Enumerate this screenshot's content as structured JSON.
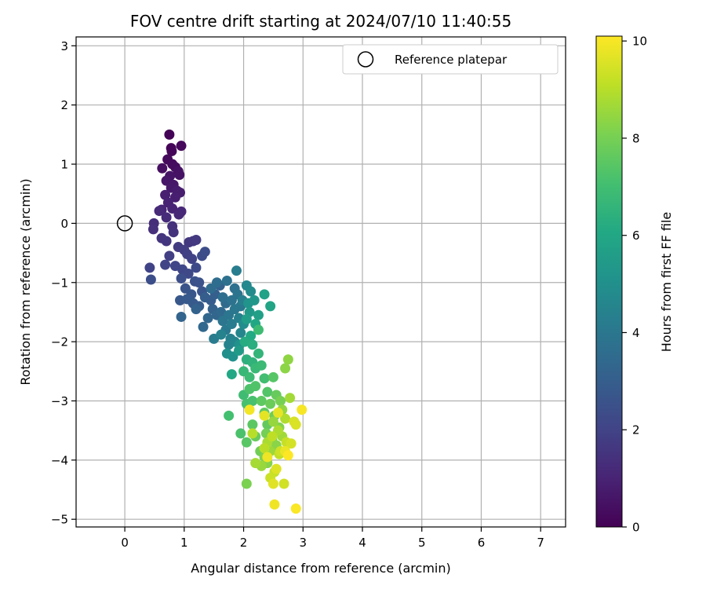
{
  "chart_data": {
    "type": "scatter",
    "title": "FOV centre drift starting at 2024/07/10 11:40:55",
    "xlabel": "Angular distance from reference (arcmin)",
    "ylabel": "Rotation from reference (arcmin)",
    "xlim": [
      -0.82,
      7.42
    ],
    "ylim": [
      -5.13,
      3.15
    ],
    "xticks": [
      0,
      1,
      2,
      3,
      4,
      5,
      6,
      7
    ],
    "yticks": [
      -5,
      -4,
      -3,
      -2,
      -1,
      0,
      1,
      2,
      3
    ],
    "grid": true,
    "legend": {
      "position": "top-right",
      "entries": [
        "Reference platepar"
      ]
    },
    "reference_point": {
      "x": 0,
      "y": 0,
      "label": "Reference platepar"
    },
    "colorbar": {
      "label": "Hours from first FF file",
      "colormap": "viridis",
      "range": [
        0,
        10.1
      ],
      "ticks": [
        0,
        2,
        4,
        6,
        8,
        10
      ]
    },
    "points": [
      [
        0.75,
        1.5,
        0.05
      ],
      [
        0.78,
        1.27,
        0.1
      ],
      [
        0.79,
        1.22,
        0.15
      ],
      [
        0.95,
        1.31,
        0.2
      ],
      [
        0.72,
        1.08,
        0.25
      ],
      [
        0.8,
        1.0,
        0.3
      ],
      [
        0.85,
        0.95,
        0.35
      ],
      [
        0.63,
        0.93,
        0.4
      ],
      [
        0.9,
        0.88,
        0.45
      ],
      [
        0.92,
        0.82,
        0.5
      ],
      [
        0.76,
        0.8,
        0.55
      ],
      [
        0.7,
        0.72,
        0.6
      ],
      [
        0.82,
        0.65,
        0.65
      ],
      [
        0.78,
        0.6,
        0.7
      ],
      [
        0.88,
        0.55,
        0.75
      ],
      [
        0.93,
        0.52,
        0.8
      ],
      [
        0.85,
        0.44,
        0.85
      ],
      [
        0.68,
        0.48,
        0.9
      ],
      [
        0.73,
        0.35,
        0.95
      ],
      [
        0.8,
        0.25,
        1.0
      ],
      [
        0.62,
        0.23,
        1.05
      ],
      [
        0.95,
        0.2,
        1.1
      ],
      [
        0.91,
        0.15,
        1.15
      ],
      [
        0.58,
        0.21,
        1.2
      ],
      [
        0.7,
        0.1,
        1.25
      ],
      [
        0.49,
        0.0,
        1.3
      ],
      [
        0.48,
        -0.1,
        1.35
      ],
      [
        0.8,
        -0.05,
        1.4
      ],
      [
        0.82,
        -0.15,
        1.45
      ],
      [
        0.62,
        -0.25,
        1.5
      ],
      [
        0.7,
        -0.3,
        1.55
      ],
      [
        1.08,
        -0.32,
        1.6
      ],
      [
        1.15,
        -0.3,
        1.65
      ],
      [
        1.2,
        -0.28,
        1.7
      ],
      [
        0.9,
        -0.4,
        1.75
      ],
      [
        1.0,
        -0.45,
        1.8
      ],
      [
        0.75,
        -0.55,
        1.85
      ],
      [
        1.05,
        -0.52,
        1.9
      ],
      [
        1.13,
        -0.6,
        1.95
      ],
      [
        0.42,
        -0.75,
        2.0
      ],
      [
        0.68,
        -0.7,
        2.05
      ],
      [
        0.85,
        -0.72,
        2.1
      ],
      [
        0.97,
        -0.78,
        2.15
      ],
      [
        1.07,
        -0.85,
        2.2
      ],
      [
        1.2,
        -0.75,
        2.25
      ],
      [
        1.3,
        -0.55,
        2.3
      ],
      [
        1.35,
        -0.48,
        2.35
      ],
      [
        0.44,
        -0.95,
        2.4
      ],
      [
        0.95,
        -0.93,
        2.45
      ],
      [
        1.18,
        -0.98,
        2.5
      ],
      [
        1.25,
        -1.0,
        2.55
      ],
      [
        1.02,
        -1.1,
        2.6
      ],
      [
        1.3,
        -1.15,
        2.65
      ],
      [
        1.12,
        -1.2,
        2.7
      ],
      [
        0.93,
        -1.3,
        2.75
      ],
      [
        1.05,
        -1.28,
        2.8
      ],
      [
        1.15,
        -1.35,
        2.85
      ],
      [
        1.25,
        -1.4,
        2.9
      ],
      [
        1.45,
        -1.3,
        2.95
      ],
      [
        1.35,
        -1.25,
        3.0
      ],
      [
        1.52,
        -1.2,
        3.05
      ],
      [
        1.6,
        -1.05,
        3.1
      ],
      [
        1.48,
        -1.45,
        3.15
      ],
      [
        1.2,
        -1.45,
        3.2
      ],
      [
        0.95,
        -1.58,
        3.25
      ],
      [
        1.55,
        -1.55,
        3.3
      ],
      [
        1.4,
        -1.6,
        3.35
      ],
      [
        1.32,
        -1.75,
        3.4
      ],
      [
        1.62,
        -1.5,
        3.45
      ],
      [
        1.7,
        -1.35,
        3.5
      ],
      [
        1.45,
        -1.1,
        3.55
      ],
      [
        1.55,
        -1.0,
        3.6
      ],
      [
        1.65,
        -1.25,
        3.65
      ],
      [
        1.85,
        -1.1,
        3.7
      ],
      [
        1.72,
        -0.97,
        3.75
      ],
      [
        1.8,
        -1.3,
        3.8
      ],
      [
        1.9,
        -1.2,
        3.85
      ],
      [
        1.65,
        -1.65,
        3.9
      ],
      [
        1.75,
        -1.55,
        3.95
      ],
      [
        1.85,
        -1.45,
        4.0
      ],
      [
        1.95,
        -1.4,
        4.05
      ],
      [
        1.7,
        -1.8,
        4.1
      ],
      [
        1.8,
        -1.7,
        4.15
      ],
      [
        1.5,
        -1.95,
        4.2
      ],
      [
        1.88,
        -0.8,
        4.25
      ],
      [
        1.98,
        -1.3,
        4.3
      ],
      [
        1.92,
        -1.6,
        4.35
      ],
      [
        1.78,
        -1.95,
        4.4
      ],
      [
        1.62,
        -1.88,
        4.45
      ],
      [
        1.75,
        -2.05,
        4.5
      ],
      [
        1.85,
        -2.0,
        4.55
      ],
      [
        1.95,
        -1.85,
        4.6
      ],
      [
        2.05,
        -1.05,
        4.7
      ],
      [
        2.12,
        -1.15,
        4.8
      ],
      [
        2.0,
        -1.7,
        4.9
      ],
      [
        1.72,
        -2.2,
        5.0
      ],
      [
        1.82,
        -2.25,
        5.05
      ],
      [
        1.93,
        -2.05,
        5.1
      ],
      [
        2.08,
        -1.35,
        5.2
      ],
      [
        2.18,
        -1.3,
        5.3
      ],
      [
        2.1,
        -1.5,
        5.4
      ],
      [
        1.92,
        -2.15,
        5.5
      ],
      [
        2.05,
        -1.62,
        5.6
      ],
      [
        2.25,
        -1.55,
        5.7
      ],
      [
        2.35,
        -1.2,
        5.8
      ],
      [
        2.45,
        -1.4,
        5.9
      ],
      [
        2.2,
        -1.7,
        6.0
      ],
      [
        1.8,
        -2.55,
        6.05
      ],
      [
        2.12,
        -1.9,
        6.1
      ],
      [
        2.02,
        -2.0,
        6.2
      ],
      [
        2.15,
        -2.05,
        6.3
      ],
      [
        2.05,
        -2.3,
        6.4
      ],
      [
        2.15,
        -2.35,
        6.5
      ],
      [
        2.25,
        -2.2,
        6.6
      ],
      [
        2.0,
        -2.5,
        6.7
      ],
      [
        2.2,
        -2.45,
        6.75
      ],
      [
        2.3,
        -2.4,
        6.8
      ],
      [
        2.1,
        -2.6,
        6.85
      ],
      [
        2.25,
        -1.8,
        6.9
      ],
      [
        2.0,
        -2.9,
        6.95
      ],
      [
        2.35,
        -2.62,
        7.0
      ],
      [
        1.75,
        -3.25,
        7.05
      ],
      [
        2.05,
        -3.05,
        7.1
      ],
      [
        2.15,
        -3.0,
        7.15
      ],
      [
        1.95,
        -3.55,
        7.2
      ],
      [
        2.1,
        -2.8,
        7.25
      ],
      [
        2.2,
        -2.75,
        7.3
      ],
      [
        2.4,
        -2.85,
        7.35
      ],
      [
        2.5,
        -2.6,
        7.4
      ],
      [
        2.05,
        -3.7,
        7.45
      ],
      [
        2.15,
        -3.4,
        7.5
      ],
      [
        2.3,
        -3.0,
        7.55
      ],
      [
        2.35,
        -3.2,
        7.6
      ],
      [
        2.4,
        -3.4,
        7.65
      ],
      [
        2.55,
        -2.9,
        7.7
      ],
      [
        2.2,
        -3.6,
        7.75
      ],
      [
        2.45,
        -3.05,
        7.8
      ],
      [
        2.52,
        -3.25,
        7.85
      ],
      [
        2.28,
        -3.85,
        7.9
      ],
      [
        2.38,
        -3.55,
        7.95
      ],
      [
        2.62,
        -3.0,
        8.0
      ],
      [
        2.48,
        -3.65,
        8.05
      ],
      [
        2.05,
        -4.4,
        8.1
      ],
      [
        2.35,
        -3.95,
        8.15
      ],
      [
        2.6,
        -3.45,
        8.2
      ],
      [
        2.4,
        -4.05,
        8.25
      ],
      [
        2.55,
        -3.75,
        8.3
      ],
      [
        2.7,
        -2.45,
        8.35
      ],
      [
        2.75,
        -2.3,
        8.4
      ],
      [
        2.65,
        -3.15,
        8.45
      ],
      [
        2.5,
        -3.35,
        8.5
      ],
      [
        2.3,
        -4.1,
        8.55
      ],
      [
        2.45,
        -3.85,
        8.6
      ],
      [
        2.65,
        -3.6,
        8.65
      ],
      [
        2.78,
        -2.95,
        8.7
      ],
      [
        2.2,
        -4.05,
        8.75
      ],
      [
        2.4,
        -3.7,
        8.8
      ],
      [
        2.58,
        -3.5,
        8.85
      ],
      [
        2.7,
        -3.3,
        8.9
      ],
      [
        2.15,
        -3.55,
        9.0
      ],
      [
        2.35,
        -3.8,
        9.05
      ],
      [
        2.48,
        -3.6,
        9.1
      ],
      [
        2.6,
        -3.9,
        9.15
      ],
      [
        2.52,
        -4.2,
        9.2
      ],
      [
        2.72,
        -3.7,
        9.25
      ],
      [
        2.45,
        -4.3,
        9.3
      ],
      [
        2.62,
        -3.85,
        9.35
      ],
      [
        2.68,
        -4.4,
        9.4
      ],
      [
        2.8,
        -3.72,
        9.45
      ],
      [
        2.85,
        -3.35,
        9.5
      ],
      [
        2.88,
        -3.4,
        9.55
      ],
      [
        2.55,
        -4.15,
        9.6
      ],
      [
        2.5,
        -4.4,
        9.65
      ],
      [
        2.35,
        -3.25,
        9.7
      ],
      [
        2.58,
        -3.2,
        9.75
      ],
      [
        2.7,
        -3.85,
        9.8
      ],
      [
        2.4,
        -3.95,
        9.85
      ],
      [
        2.52,
        -4.75,
        9.9
      ],
      [
        2.1,
        -3.15,
        9.95
      ],
      [
        2.98,
        -3.15,
        10.0
      ],
      [
        2.88,
        -4.82,
        10.05
      ],
      [
        2.75,
        -3.92,
        10.1
      ]
    ]
  }
}
